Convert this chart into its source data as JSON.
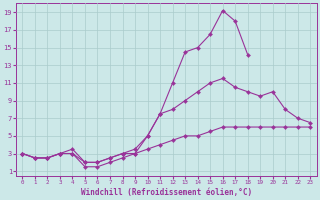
{
  "background_color": "#cce8e8",
  "grid_color": "#aacccc",
  "line_color": "#993399",
  "marker_color": "#993399",
  "xlabel": "Windchill (Refroidissement éolien,°C)",
  "xlim": [
    -0.5,
    23.5
  ],
  "ylim": [
    0.5,
    20
  ],
  "xticks": [
    0,
    1,
    2,
    3,
    4,
    5,
    6,
    7,
    8,
    9,
    10,
    11,
    12,
    13,
    14,
    15,
    16,
    17,
    18,
    19,
    20,
    21,
    22,
    23
  ],
  "yticks": [
    1,
    3,
    5,
    7,
    9,
    11,
    13,
    15,
    17,
    19
  ],
  "line_top_x": [
    0,
    1,
    2,
    3,
    4,
    5,
    6,
    7,
    8,
    9,
    10,
    11,
    12,
    13,
    14,
    15,
    16,
    17,
    18
  ],
  "line_top_y": [
    3,
    2.5,
    2.5,
    3,
    3,
    1.5,
    1.5,
    2,
    2.5,
    3,
    5,
    7.5,
    11,
    14.5,
    15,
    16.5,
    19.2,
    18,
    14.2
  ],
  "line_mid_x": [
    0,
    1,
    2,
    3,
    4,
    5,
    6,
    7,
    8,
    9,
    10,
    11,
    12,
    13,
    14,
    15,
    16,
    17,
    18,
    19,
    20,
    21,
    22,
    23
  ],
  "line_mid_y": [
    3,
    2.5,
    2.5,
    3,
    3.5,
    2,
    2,
    2.5,
    3,
    3.5,
    5,
    7.5,
    8,
    9,
    10,
    11,
    11.5,
    10.5,
    10,
    9.5,
    10,
    8,
    7,
    6.5
  ],
  "line_bot_x": [
    0,
    1,
    2,
    3,
    4,
    5,
    6,
    7,
    8,
    9,
    10,
    11,
    12,
    13,
    14,
    15,
    16,
    17,
    18,
    19,
    20,
    21,
    22,
    23
  ],
  "line_bot_y": [
    3,
    2.5,
    2.5,
    3,
    3,
    2,
    2,
    2.5,
    3,
    3,
    3.5,
    4,
    4.5,
    5,
    5,
    5.5,
    6,
    6,
    6,
    6,
    6,
    6,
    6,
    6
  ]
}
